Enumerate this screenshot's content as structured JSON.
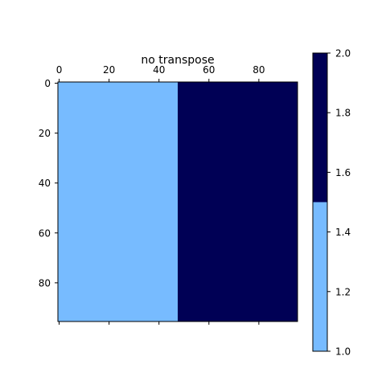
{
  "chart_data": {
    "type": "heatmap",
    "title": "no transpose",
    "image": {
      "nrows": 96,
      "ncols": 96,
      "extent_x": [
        -0.5,
        95.5
      ],
      "extent_y": [
        -0.5,
        95.5
      ],
      "y_inverted": true,
      "regions": [
        {
          "x_range": [
            -0.5,
            47.5
          ],
          "y_range": [
            -0.5,
            95.5
          ],
          "value": 1
        },
        {
          "x_range": [
            47.5,
            95.5
          ],
          "y_range": [
            -0.5,
            95.5
          ],
          "value": 2
        }
      ]
    },
    "x_axis": {
      "position": "top",
      "ticks": [
        0,
        20,
        40,
        60,
        80
      ],
      "tick_labels": [
        "0",
        "20",
        "40",
        "60",
        "80"
      ],
      "bottom_ticks_unlabeled": true
    },
    "y_axis": {
      "ticks": [
        0,
        20,
        40,
        60,
        80
      ],
      "tick_labels": [
        "0",
        "20",
        "40",
        "60",
        "80"
      ]
    },
    "colorbar": {
      "range": [
        1.0,
        2.0
      ],
      "ticks": [
        1.0,
        1.2,
        1.4,
        1.6,
        1.8,
        2.0
      ],
      "tick_labels": [
        "1.0",
        "1.2",
        "1.4",
        "1.6",
        "1.8",
        "2.0"
      ],
      "bins": [
        {
          "from": 1.0,
          "to": 1.5,
          "color": "#77bbff"
        },
        {
          "from": 1.5,
          "to": 2.0,
          "color": "#000055"
        }
      ]
    },
    "colors": {
      "low": "#77bbff",
      "high": "#000055"
    }
  }
}
